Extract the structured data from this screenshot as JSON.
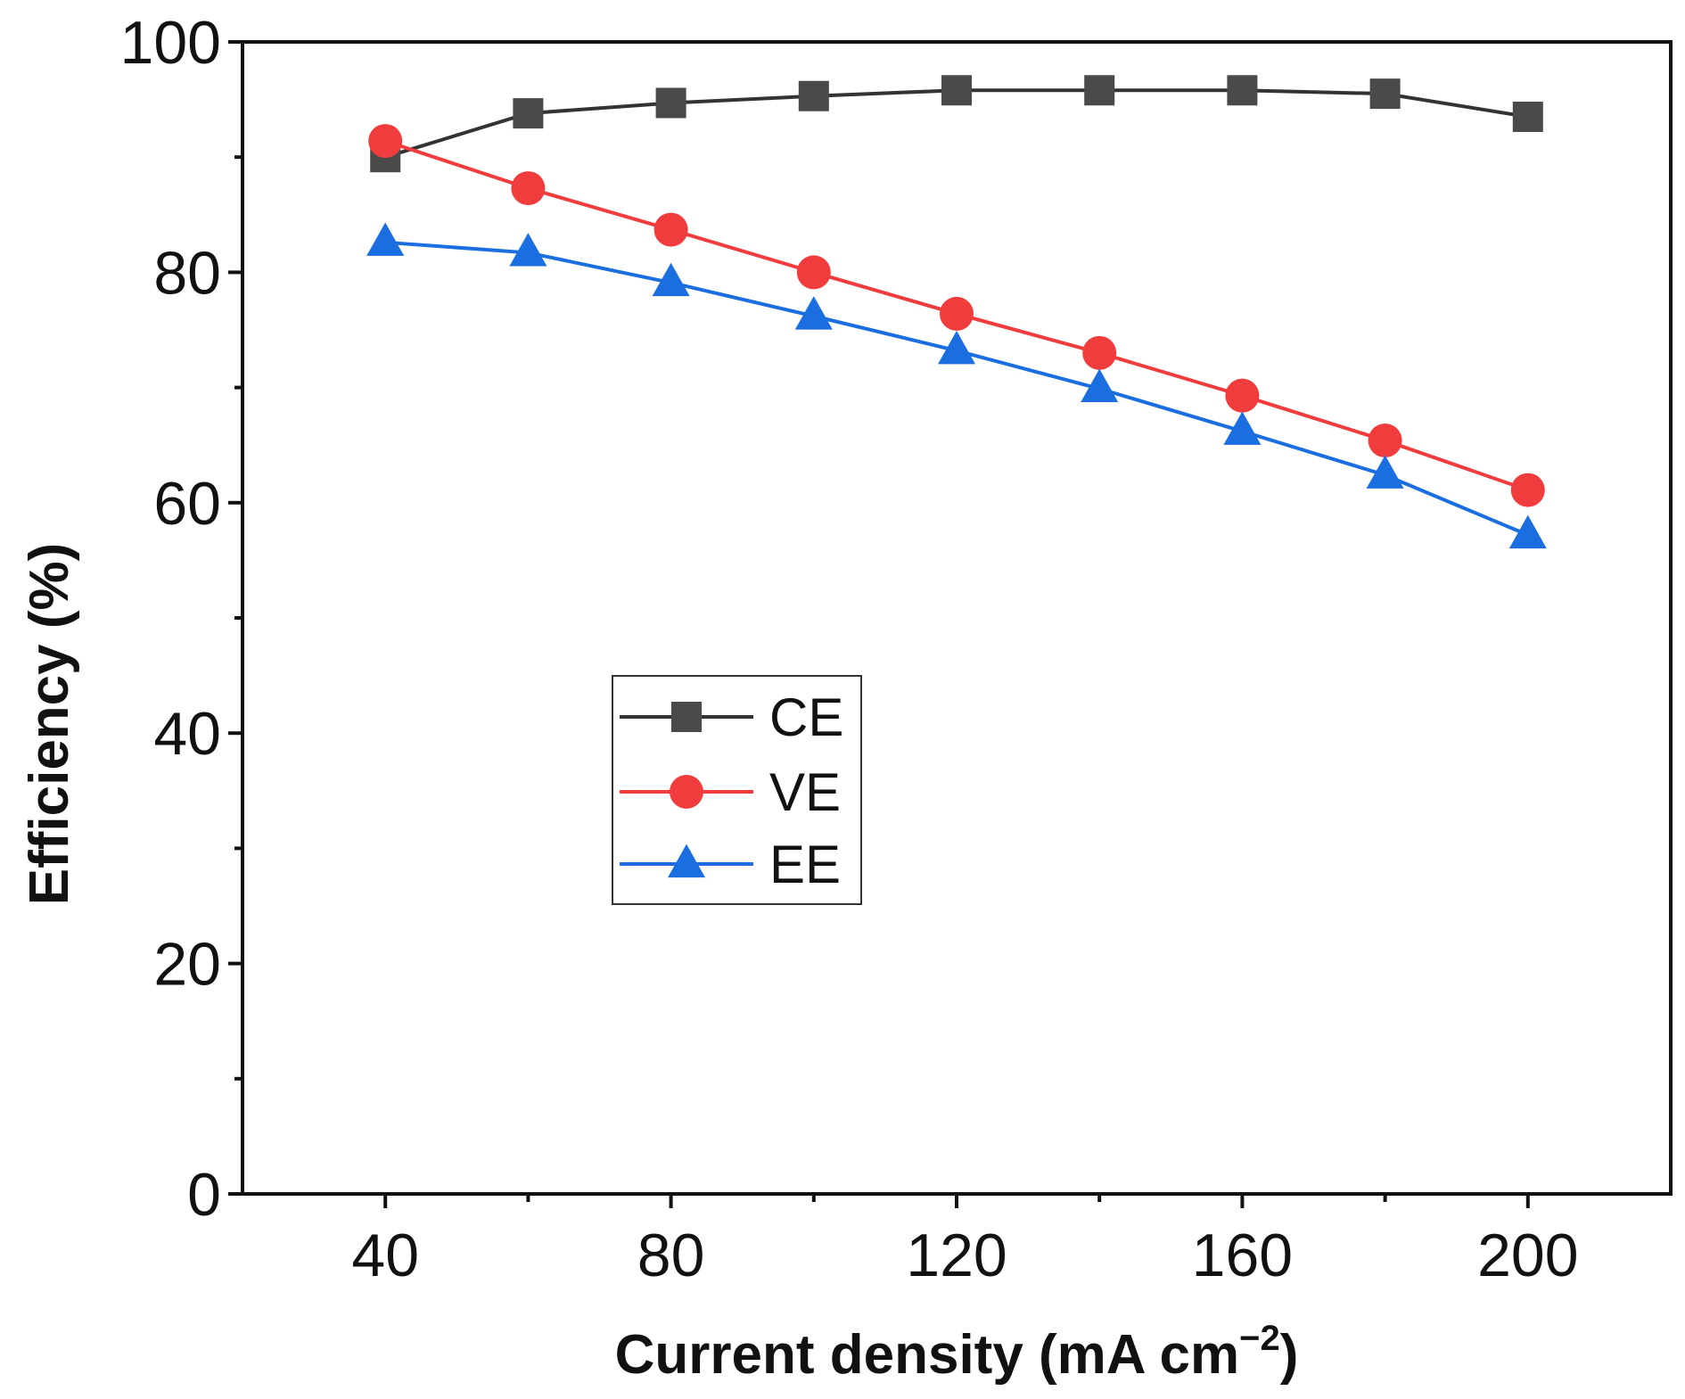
{
  "chart_data": {
    "type": "line",
    "title": "",
    "xlabel": "Current density (mA cm",
    "xlabel_superscript": "−2",
    "xlabel_close": ")",
    "ylabel": "Efficiency (%)",
    "xlim": [
      20,
      220
    ],
    "ylim": [
      0,
      100
    ],
    "x_ticks": [
      40,
      80,
      120,
      160,
      200
    ],
    "x_minor_ticks": [
      60,
      100,
      140,
      180
    ],
    "y_ticks": [
      0,
      20,
      40,
      60,
      80,
      100
    ],
    "y_minor_ticks": [
      10,
      30,
      50,
      70,
      90
    ],
    "x": [
      40,
      60,
      80,
      100,
      120,
      140,
      160,
      180,
      200
    ],
    "series": [
      {
        "name": "CE",
        "marker": "square",
        "color": "#4a4a4a",
        "line_color": "#333333",
        "values": [
          90.0,
          93.8,
          94.7,
          95.3,
          95.8,
          95.8,
          95.8,
          95.5,
          93.5
        ]
      },
      {
        "name": "VE",
        "marker": "circle",
        "color": "#f03c3c",
        "line_color": "#f03c3c",
        "values": [
          91.4,
          87.3,
          83.7,
          80.0,
          76.4,
          73.0,
          69.3,
          65.4,
          61.1
        ]
      },
      {
        "name": "EE",
        "marker": "triangle",
        "color": "#1a6ee0",
        "line_color": "#1a6ee0",
        "values": [
          82.6,
          81.7,
          79.1,
          76.2,
          73.2,
          69.9,
          66.2,
          62.4,
          57.2
        ]
      }
    ],
    "legend_position": "center-left",
    "grid": false
  }
}
